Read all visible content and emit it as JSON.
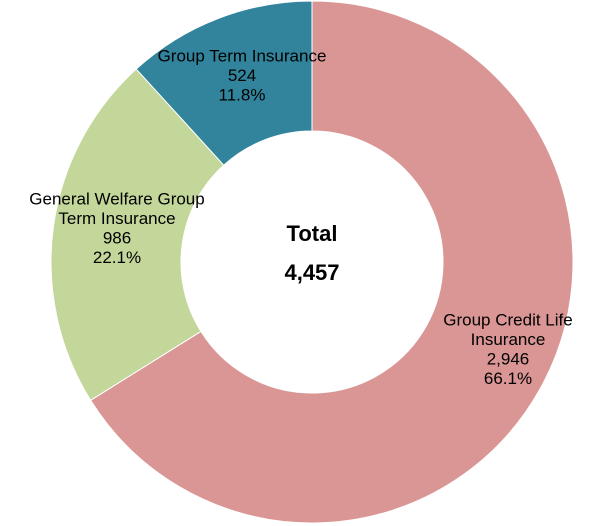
{
  "chart_data": {
    "type": "donut",
    "categories": [
      [
        "Group Credit Life",
        "Insurance"
      ],
      [
        "General Welfare Group",
        "Term Insurance"
      ],
      [
        "Group Term Insurance"
      ]
    ],
    "values": [
      2946,
      986,
      524
    ],
    "value_labels": [
      "2,946",
      "986",
      "524"
    ],
    "percents": [
      66.1,
      22.1,
      11.8
    ],
    "percent_labels": [
      "66.1%",
      "22.1%",
      "11.8%"
    ],
    "colors": [
      "#d99694",
      "#c4d79b",
      "#31849b"
    ],
    "center_title": "Total",
    "total": {
      "value": 4457,
      "label": "4,457"
    }
  }
}
